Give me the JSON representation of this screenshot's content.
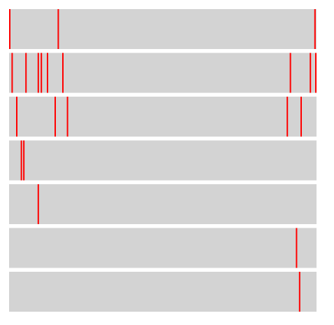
{
  "chart_data": {
    "type": "eventplot",
    "title": "",
    "xlabel": "",
    "ylabel": "",
    "xlim": [
      0,
      1
    ],
    "grid": false,
    "colors": {
      "background": "#d3d3d3",
      "event": "#ff0000"
    },
    "rows": [
      {
        "events": [
          0.0,
          0.16,
          0.995
        ]
      },
      {
        "events": [
          0.01,
          0.055,
          0.095,
          0.105,
          0.125,
          0.175,
          0.915,
          0.98,
          1.0
        ]
      },
      {
        "events": [
          0.025,
          0.15,
          0.19,
          0.905,
          0.95
        ]
      },
      {
        "events": [
          0.04,
          0.048
        ]
      },
      {
        "events": [
          0.095
        ]
      },
      {
        "events": [
          0.935
        ]
      },
      {
        "events": [
          0.945
        ]
      }
    ]
  }
}
